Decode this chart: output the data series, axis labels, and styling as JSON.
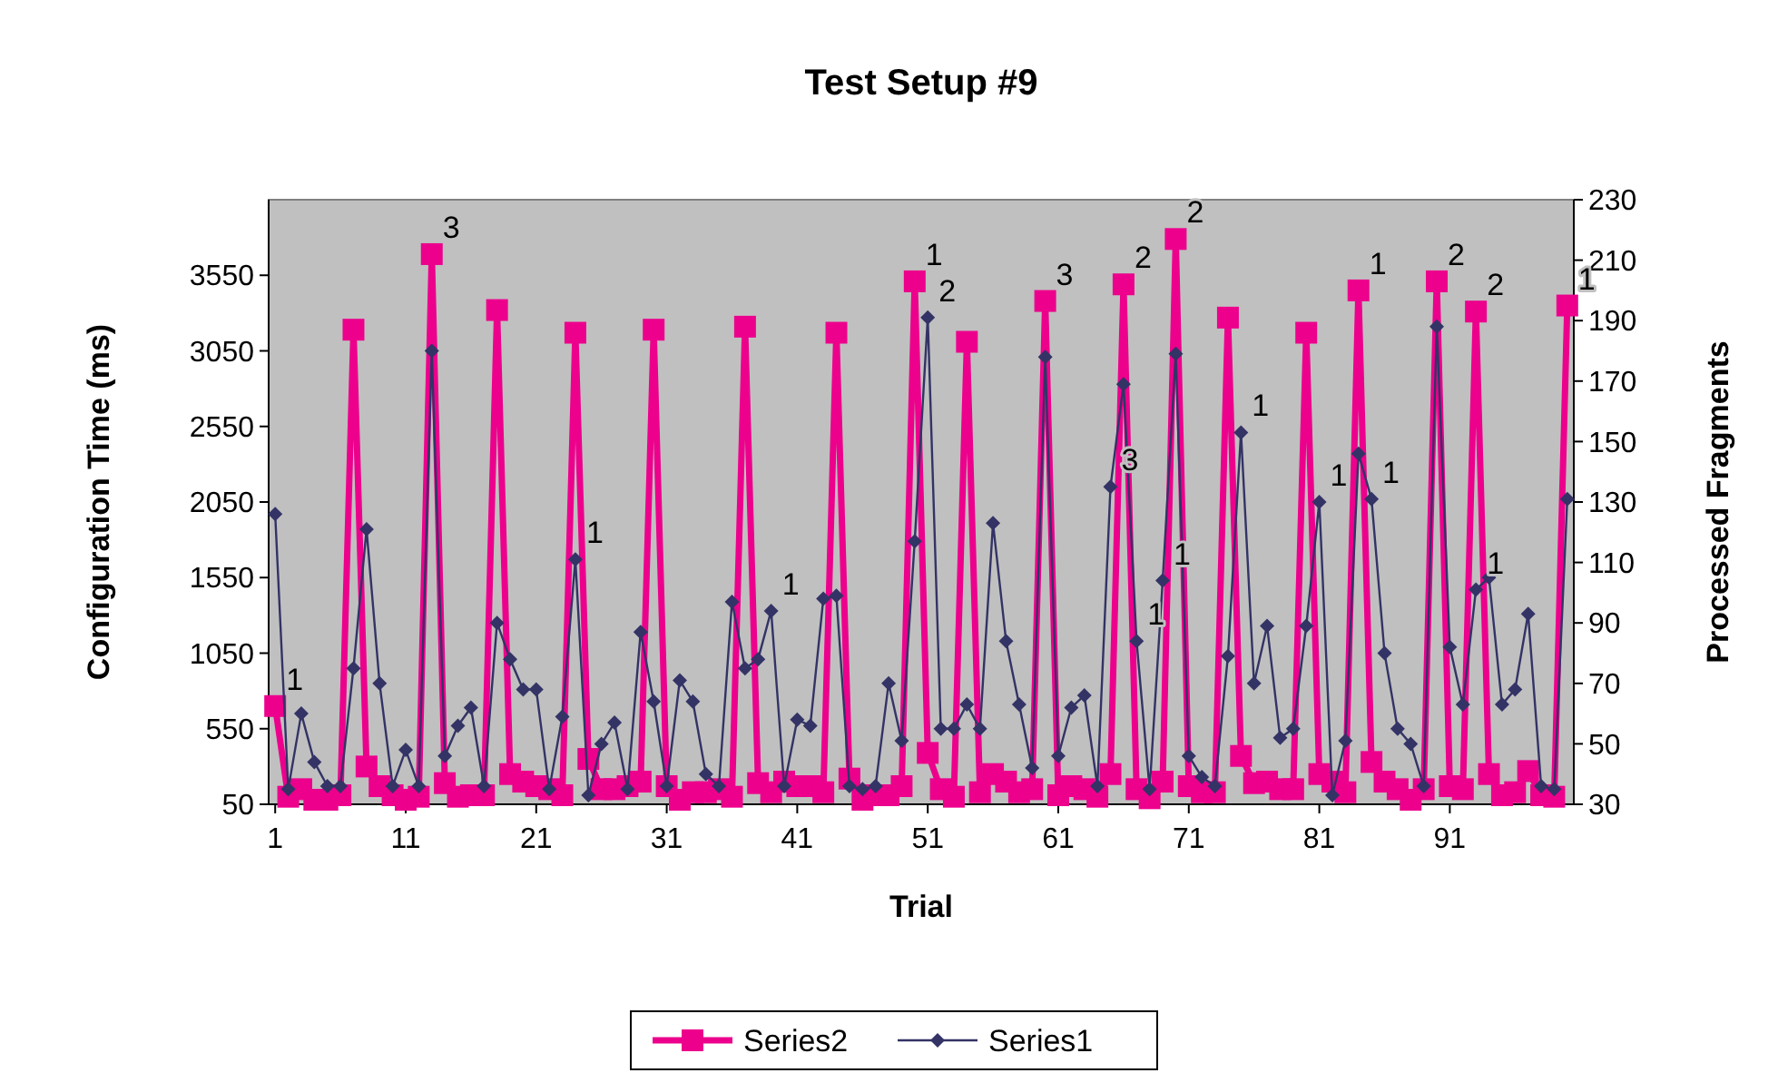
{
  "chart_data": {
    "type": "line",
    "title": "Test Setup #9",
    "xlabel": "Trial",
    "ylabel": "Configuration Time (ms)",
    "y2label": "Processed Fragments",
    "x": [
      1,
      2,
      3,
      4,
      5,
      6,
      7,
      8,
      9,
      10,
      11,
      12,
      13,
      14,
      15,
      16,
      17,
      18,
      19,
      20,
      21,
      22,
      23,
      24,
      25,
      26,
      27,
      28,
      29,
      30,
      31,
      32,
      33,
      34,
      35,
      36,
      37,
      38,
      39,
      40,
      41,
      42,
      43,
      44,
      45,
      46,
      47,
      48,
      49,
      50,
      51,
      52,
      53,
      54,
      55,
      56,
      57,
      58,
      59,
      60,
      61,
      62,
      63,
      64,
      65,
      66,
      67,
      68,
      69,
      70,
      71,
      72,
      73,
      74,
      75,
      76,
      77,
      78,
      79,
      80,
      81,
      82,
      83,
      84,
      85,
      86,
      87,
      88,
      89,
      90,
      91,
      92,
      93,
      94,
      95,
      96,
      97,
      98,
      99,
      100
    ],
    "xlim": [
      0.5,
      100.5
    ],
    "xticks": [
      1,
      11,
      21,
      31,
      41,
      51,
      61,
      71,
      81,
      91
    ],
    "ylim": [
      50,
      4050
    ],
    "yticks": [
      50,
      550,
      1050,
      1550,
      2050,
      2550,
      3050,
      3550
    ],
    "y2lim": [
      30,
      230
    ],
    "y2ticks": [
      30,
      50,
      70,
      90,
      110,
      130,
      150,
      170,
      190,
      210,
      230
    ],
    "grid": false,
    "legend": "bottom",
    "annotations": [
      {
        "text": "1",
        "x": 1,
        "y": 700
      },
      {
        "text": "3",
        "x": 13,
        "y": 3690
      },
      {
        "text": "1",
        "x": 24,
        "y": 1670
      },
      {
        "text": "1",
        "x": 39,
        "y": 1330
      },
      {
        "text": "1",
        "x": 50,
        "y": 3510
      },
      {
        "text": "2",
        "x": 51,
        "y": 3270
      },
      {
        "text": "3",
        "x": 60,
        "y": 3380
      },
      {
        "text": "3",
        "x": 65,
        "y": 2150
      },
      {
        "text": "2",
        "x": 66,
        "y": 3490
      },
      {
        "text": "1",
        "x": 67,
        "y": 1130
      },
      {
        "text": "1",
        "x": 69,
        "y": 1530
      },
      {
        "text": "2",
        "x": 70,
        "y": 3790
      },
      {
        "text": "1",
        "x": 75,
        "y": 2510
      },
      {
        "text": "1",
        "x": 81,
        "y": 2050
      },
      {
        "text": "1",
        "x": 84,
        "y": 3450
      },
      {
        "text": "1",
        "x": 85,
        "y": 2070
      },
      {
        "text": "2",
        "x": 90,
        "y": 3510
      },
      {
        "text": "2",
        "x": 93,
        "y": 3310
      },
      {
        "text": "1",
        "x": 93,
        "y": 1470
      },
      {
        "text": "1",
        "x": 100,
        "y": 3350
      }
    ],
    "series": [
      {
        "name": "Series2",
        "color": "#ec008c",
        "marker": "square",
        "values": [
          700,
          100,
          150,
          80,
          80,
          110,
          3190,
          300,
          170,
          110,
          80,
          100,
          3690,
          190,
          100,
          110,
          110,
          3320,
          250,
          200,
          170,
          150,
          110,
          3170,
          350,
          150,
          150,
          170,
          200,
          3190,
          170,
          80,
          130,
          130,
          150,
          100,
          3210,
          190,
          130,
          200,
          170,
          170,
          130,
          3170,
          220,
          80,
          110,
          110,
          170,
          3510,
          390,
          150,
          100,
          3110,
          130,
          250,
          200,
          130,
          150,
          3380,
          110,
          170,
          150,
          100,
          250,
          3490,
          150,
          90,
          200,
          3790,
          170,
          130,
          130,
          3270,
          370,
          190,
          200,
          150,
          150,
          3170,
          250,
          200,
          130,
          3450,
          330,
          200,
          150,
          80,
          150,
          3510,
          170,
          150,
          3310,
          250,
          110,
          130,
          270,
          110,
          100,
          3350
        ]
      },
      {
        "name": "Series1",
        "color": "#333366",
        "marker": "diamond",
        "axis": "y2",
        "values": [
          126,
          35,
          60,
          44,
          36,
          36,
          75,
          121,
          70,
          36,
          48,
          36,
          180,
          46,
          56,
          62,
          36,
          90,
          78,
          68,
          68,
          35,
          59,
          111,
          33,
          50,
          57,
          35,
          87,
          64,
          36,
          71,
          64,
          40,
          36,
          97,
          75,
          78,
          94,
          36,
          58,
          56,
          98,
          99,
          36,
          35,
          36,
          70,
          51,
          117,
          191,
          55,
          55,
          63,
          55,
          123,
          84,
          63,
          42,
          178,
          46,
          62,
          66,
          36,
          135,
          169,
          84,
          35,
          104,
          179,
          46,
          39,
          36,
          79,
          153,
          70,
          89,
          52,
          55,
          89,
          130,
          33,
          51,
          146,
          131,
          80,
          55,
          50,
          36,
          188,
          82,
          63,
          101,
          105,
          63,
          68,
          93,
          36,
          35,
          131
        ]
      }
    ]
  }
}
